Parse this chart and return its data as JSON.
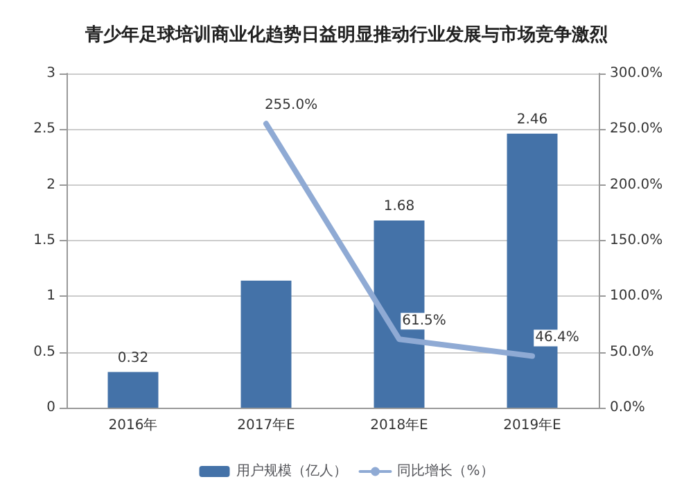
{
  "chart_data": {
    "type": "bar",
    "title": "青少年足球培训商业化趋势日益明显推动行业发展与市场竞争激烈",
    "categories": [
      "2016年",
      "2017年E",
      "2018年E",
      "2019年E"
    ],
    "series": [
      {
        "name": "用户规模（亿人）",
        "color": "#4472a8",
        "values": [
          0.32,
          1.14,
          1.68,
          2.46
        ],
        "value_labels": [
          "0.32",
          null,
          "1.68",
          "2.46"
        ]
      },
      {
        "name": "同比增长（%）",
        "type": "line",
        "axis": "y2",
        "color": "#8faad4",
        "values": [
          null,
          255.0,
          61.5,
          46.4
        ],
        "value_labels": [
          null,
          "255.0%",
          "61.5%",
          "46.4%"
        ]
      }
    ],
    "ylim": [
      0,
      3
    ],
    "yticks": [
      0,
      0.5,
      1,
      1.5,
      2,
      2.5,
      3
    ],
    "y2lim": [
      0,
      300
    ],
    "y2ticks": [
      {
        "value": 0,
        "label": "0.0%"
      },
      {
        "value": 50,
        "label": "50.0%"
      },
      {
        "value": 100,
        "label": "100.0%"
      },
      {
        "value": 150,
        "label": "150.0%"
      },
      {
        "value": 200,
        "label": "200.0%"
      },
      {
        "value": 250,
        "label": "250.0%"
      },
      {
        "value": 300,
        "label": "300.0%"
      }
    ],
    "grid": "y",
    "legend": "bottom",
    "marker": "none"
  }
}
